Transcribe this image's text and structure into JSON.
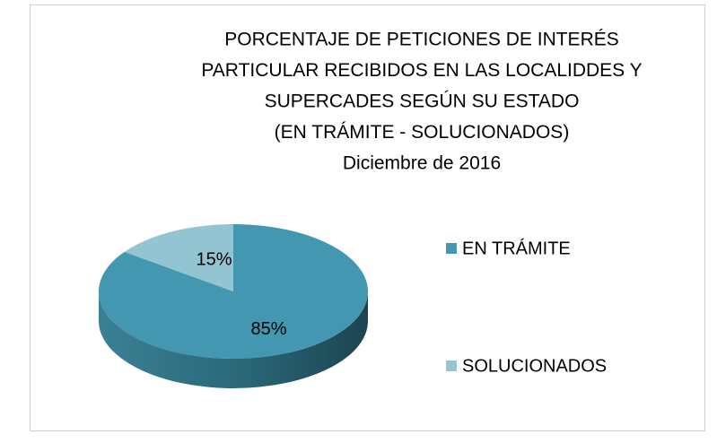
{
  "chart_data": {
    "type": "pie",
    "title": [
      "PORCENTAJE DE PETICIONES DE INTERÉS",
      "PARTICULAR RECIBIDOS EN LAS LOCALIDDES Y",
      "SUPERCADES  SEGÚN SU ESTADO",
      "(EN TRÁMITE - SOLUCIONADOS)",
      "Diciembre  de 2016"
    ],
    "categories": [
      "EN TRÁMITE",
      "SOLUCIONADOS"
    ],
    "values": [
      85,
      15
    ],
    "value_labels": [
      "85%",
      "15%"
    ],
    "colors": [
      "#4397b0",
      "#93c4d2"
    ],
    "legend": "right"
  }
}
